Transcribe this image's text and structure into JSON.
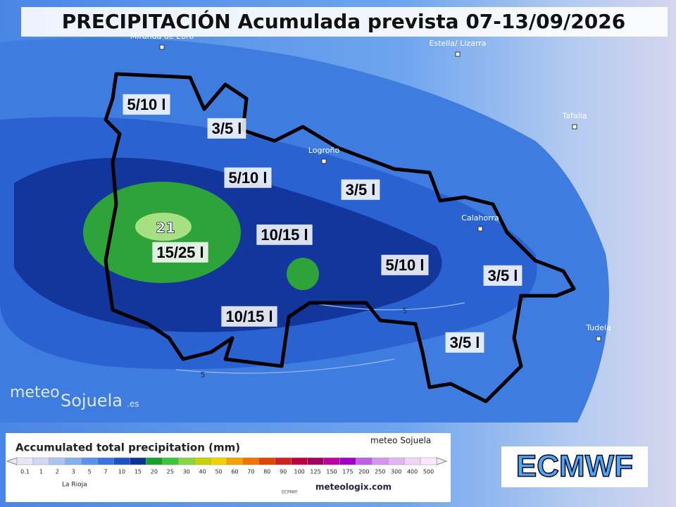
{
  "header": {
    "title": "PRECIPITACIÓN Acumulada prevista 07-13/09/2026"
  },
  "places": [
    {
      "label": "Miranda de Ebro"
    },
    {
      "label": "Estella/ Lizarra"
    },
    {
      "label": "Tafalla"
    },
    {
      "label": "Logroño"
    },
    {
      "label": "Calahorra"
    },
    {
      "label": "Tudela"
    }
  ],
  "areas": [
    {
      "label": "5/10 l"
    },
    {
      "label": "3/5 l"
    },
    {
      "label": "5/10 l"
    },
    {
      "label": "3/5 l"
    },
    {
      "label": "10/15 l"
    },
    {
      "label": "15/25 l"
    },
    {
      "label": "5/10 l"
    },
    {
      "label": "3/5 l"
    },
    {
      "label": "10/15 l"
    },
    {
      "label": "3/5 l"
    }
  ],
  "max_value": 21,
  "contours": [
    5,
    5
  ],
  "logo": {
    "text": "meteo",
    "brand": "Sojuela",
    "suffix": ".es"
  },
  "legend": {
    "title": "Accumulated total precipitation (mm)",
    "region": "La Rioja",
    "brand": "meteo Sojuela",
    "source": "ECMWF",
    "site": "meteologix.com",
    "steps": [
      {
        "value": 0.1,
        "color": "#e6e6f6"
      },
      {
        "value": 1,
        "color": "#cdd9f2"
      },
      {
        "value": 2,
        "color": "#aac6f0"
      },
      {
        "value": 3,
        "color": "#84b0ee"
      },
      {
        "value": 5,
        "color": "#5b93ea"
      },
      {
        "value": 7,
        "color": "#3a74e0"
      },
      {
        "value": 10,
        "color": "#1b52c4"
      },
      {
        "value": 15,
        "color": "#0c3394"
      },
      {
        "value": 20,
        "color": "#18a02a"
      },
      {
        "value": 25,
        "color": "#3cc43a"
      },
      {
        "value": 30,
        "color": "#8ad444"
      },
      {
        "value": 40,
        "color": "#c8d400"
      },
      {
        "value": 50,
        "color": "#f2d200"
      },
      {
        "value": 60,
        "color": "#f2a400"
      },
      {
        "value": 70,
        "color": "#f27400"
      },
      {
        "value": 80,
        "color": "#e04400"
      },
      {
        "value": 90,
        "color": "#d02020"
      },
      {
        "value": 100,
        "color": "#c00040"
      },
      {
        "value": 125,
        "color": "#a00060"
      },
      {
        "value": 150,
        "color": "#c000a0"
      },
      {
        "value": 175,
        "color": "#a000c8"
      },
      {
        "value": 200,
        "color": "#c060e0"
      },
      {
        "value": 250,
        "color": "#d494f0"
      },
      {
        "value": 300,
        "color": "#e2b4f4"
      },
      {
        "value": 400,
        "color": "#f0d4f8"
      },
      {
        "value": 500,
        "color": "#f8eafc"
      }
    ]
  },
  "model": "ECMWF"
}
